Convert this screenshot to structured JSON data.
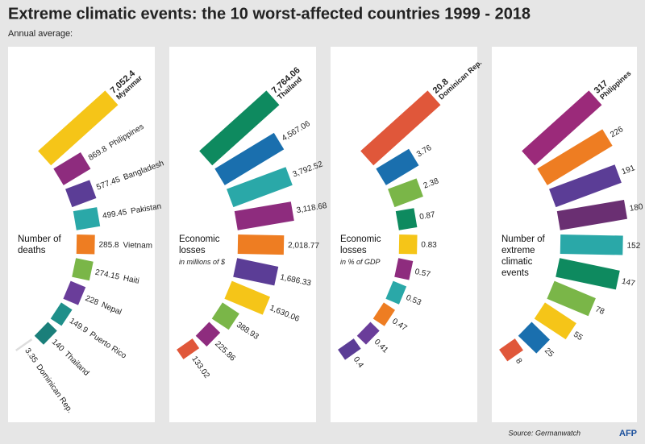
{
  "title": "Extreme climatic events: the 10 worst-affected countries 1999 - 2018",
  "subtitle": "Annual average:",
  "source": "Source: Germanwatch",
  "logo": "AFP",
  "chart_data": [
    {
      "type": "radial-bar",
      "title": "Number of deaths",
      "scale": "sqrt",
      "categories": [
        "Myanmar",
        "Philippines",
        "Bangladesh",
        "Pakistan",
        "Vietnam",
        "Haiti",
        "Nepal",
        "Puerto Rico",
        "Thailand",
        "Dominican Rep."
      ],
      "values": [
        7052.4,
        869.8,
        577.45,
        499.45,
        285.8,
        274.15,
        228,
        149.9,
        140,
        3.35
      ],
      "value_labels": [
        "7,052.4",
        "869.8",
        "577.45",
        "499.45",
        "285.8",
        "274.15",
        "228",
        "149.9",
        "140",
        "3.35"
      ],
      "colors": [
        "#f5c518",
        "#8e2c7e",
        "#5b3d96",
        "#2aa8a8",
        "#ee7d22",
        "#7ab648",
        "#6a3d9a",
        "#1f8f8a",
        "#1a7f7a",
        "#dddddd"
      ]
    },
    {
      "type": "radial-bar",
      "title": "Economic losses",
      "subtitle": "in millions of $",
      "scale": "sqrt",
      "categories": [
        "Thailand",
        null,
        null,
        null,
        null,
        null,
        null,
        null,
        null,
        null
      ],
      "values": [
        7764.06,
        4567.06,
        3792.52,
        3118.68,
        2018.77,
        1686.33,
        1630.06,
        388.93,
        225.86,
        133.02
      ],
      "value_labels": [
        "7,764.06",
        "4,567.06",
        "3,792.52",
        "3,118.68",
        "2,018.77",
        "1,686.33",
        "1,630.06",
        "388.93",
        "225.86",
        "133.02"
      ],
      "colors": [
        "#0e8a5f",
        "#1a6fae",
        "#2aa8a8",
        "#8e2c7e",
        "#ee7d22",
        "#5b3d96",
        "#f5c518",
        "#7ab648",
        "#8e2c7e",
        "#e0573a"
      ]
    },
    {
      "type": "radial-bar",
      "title": "Economic losses",
      "subtitle": "in % of GDP",
      "scale": "sqrt",
      "categories": [
        "Dominican Rep.",
        null,
        null,
        null,
        null,
        null,
        null,
        null,
        null,
        null
      ],
      "values": [
        20.8,
        3.76,
        2.38,
        0.87,
        0.83,
        0.57,
        0.53,
        0.47,
        0.41,
        0.4
      ],
      "value_labels": [
        "20.8",
        "3.76",
        "2.38",
        "0.87",
        "0.83",
        "0.57",
        "0.53",
        "0.47",
        "0.41",
        "0.4"
      ],
      "colors": [
        "#e0573a",
        "#1a6fae",
        "#7ab648",
        "#0e8a5f",
        "#f5c518",
        "#8e2c7e",
        "#2aa8a8",
        "#ee7d22",
        "#6a3d9a",
        "#5b3d96"
      ]
    },
    {
      "type": "radial-bar",
      "title": "Number of extreme climatic events",
      "scale": "sqrt",
      "categories": [
        "Philippines",
        null,
        null,
        null,
        null,
        null,
        null,
        null,
        null,
        null
      ],
      "values": [
        317,
        226,
        191,
        180,
        152,
        147,
        78,
        55,
        25,
        8
      ],
      "value_labels": [
        "317",
        "226",
        "191",
        "180",
        "152",
        "147",
        "78",
        "55",
        "25",
        "8"
      ],
      "colors": [
        "#9b2a7a",
        "#ee7d22",
        "#5b3d96",
        "#6a2f72",
        "#2aa8a8",
        "#0e8a5f",
        "#7ab648",
        "#f5c518",
        "#1a6fae",
        "#e0573a"
      ]
    }
  ]
}
